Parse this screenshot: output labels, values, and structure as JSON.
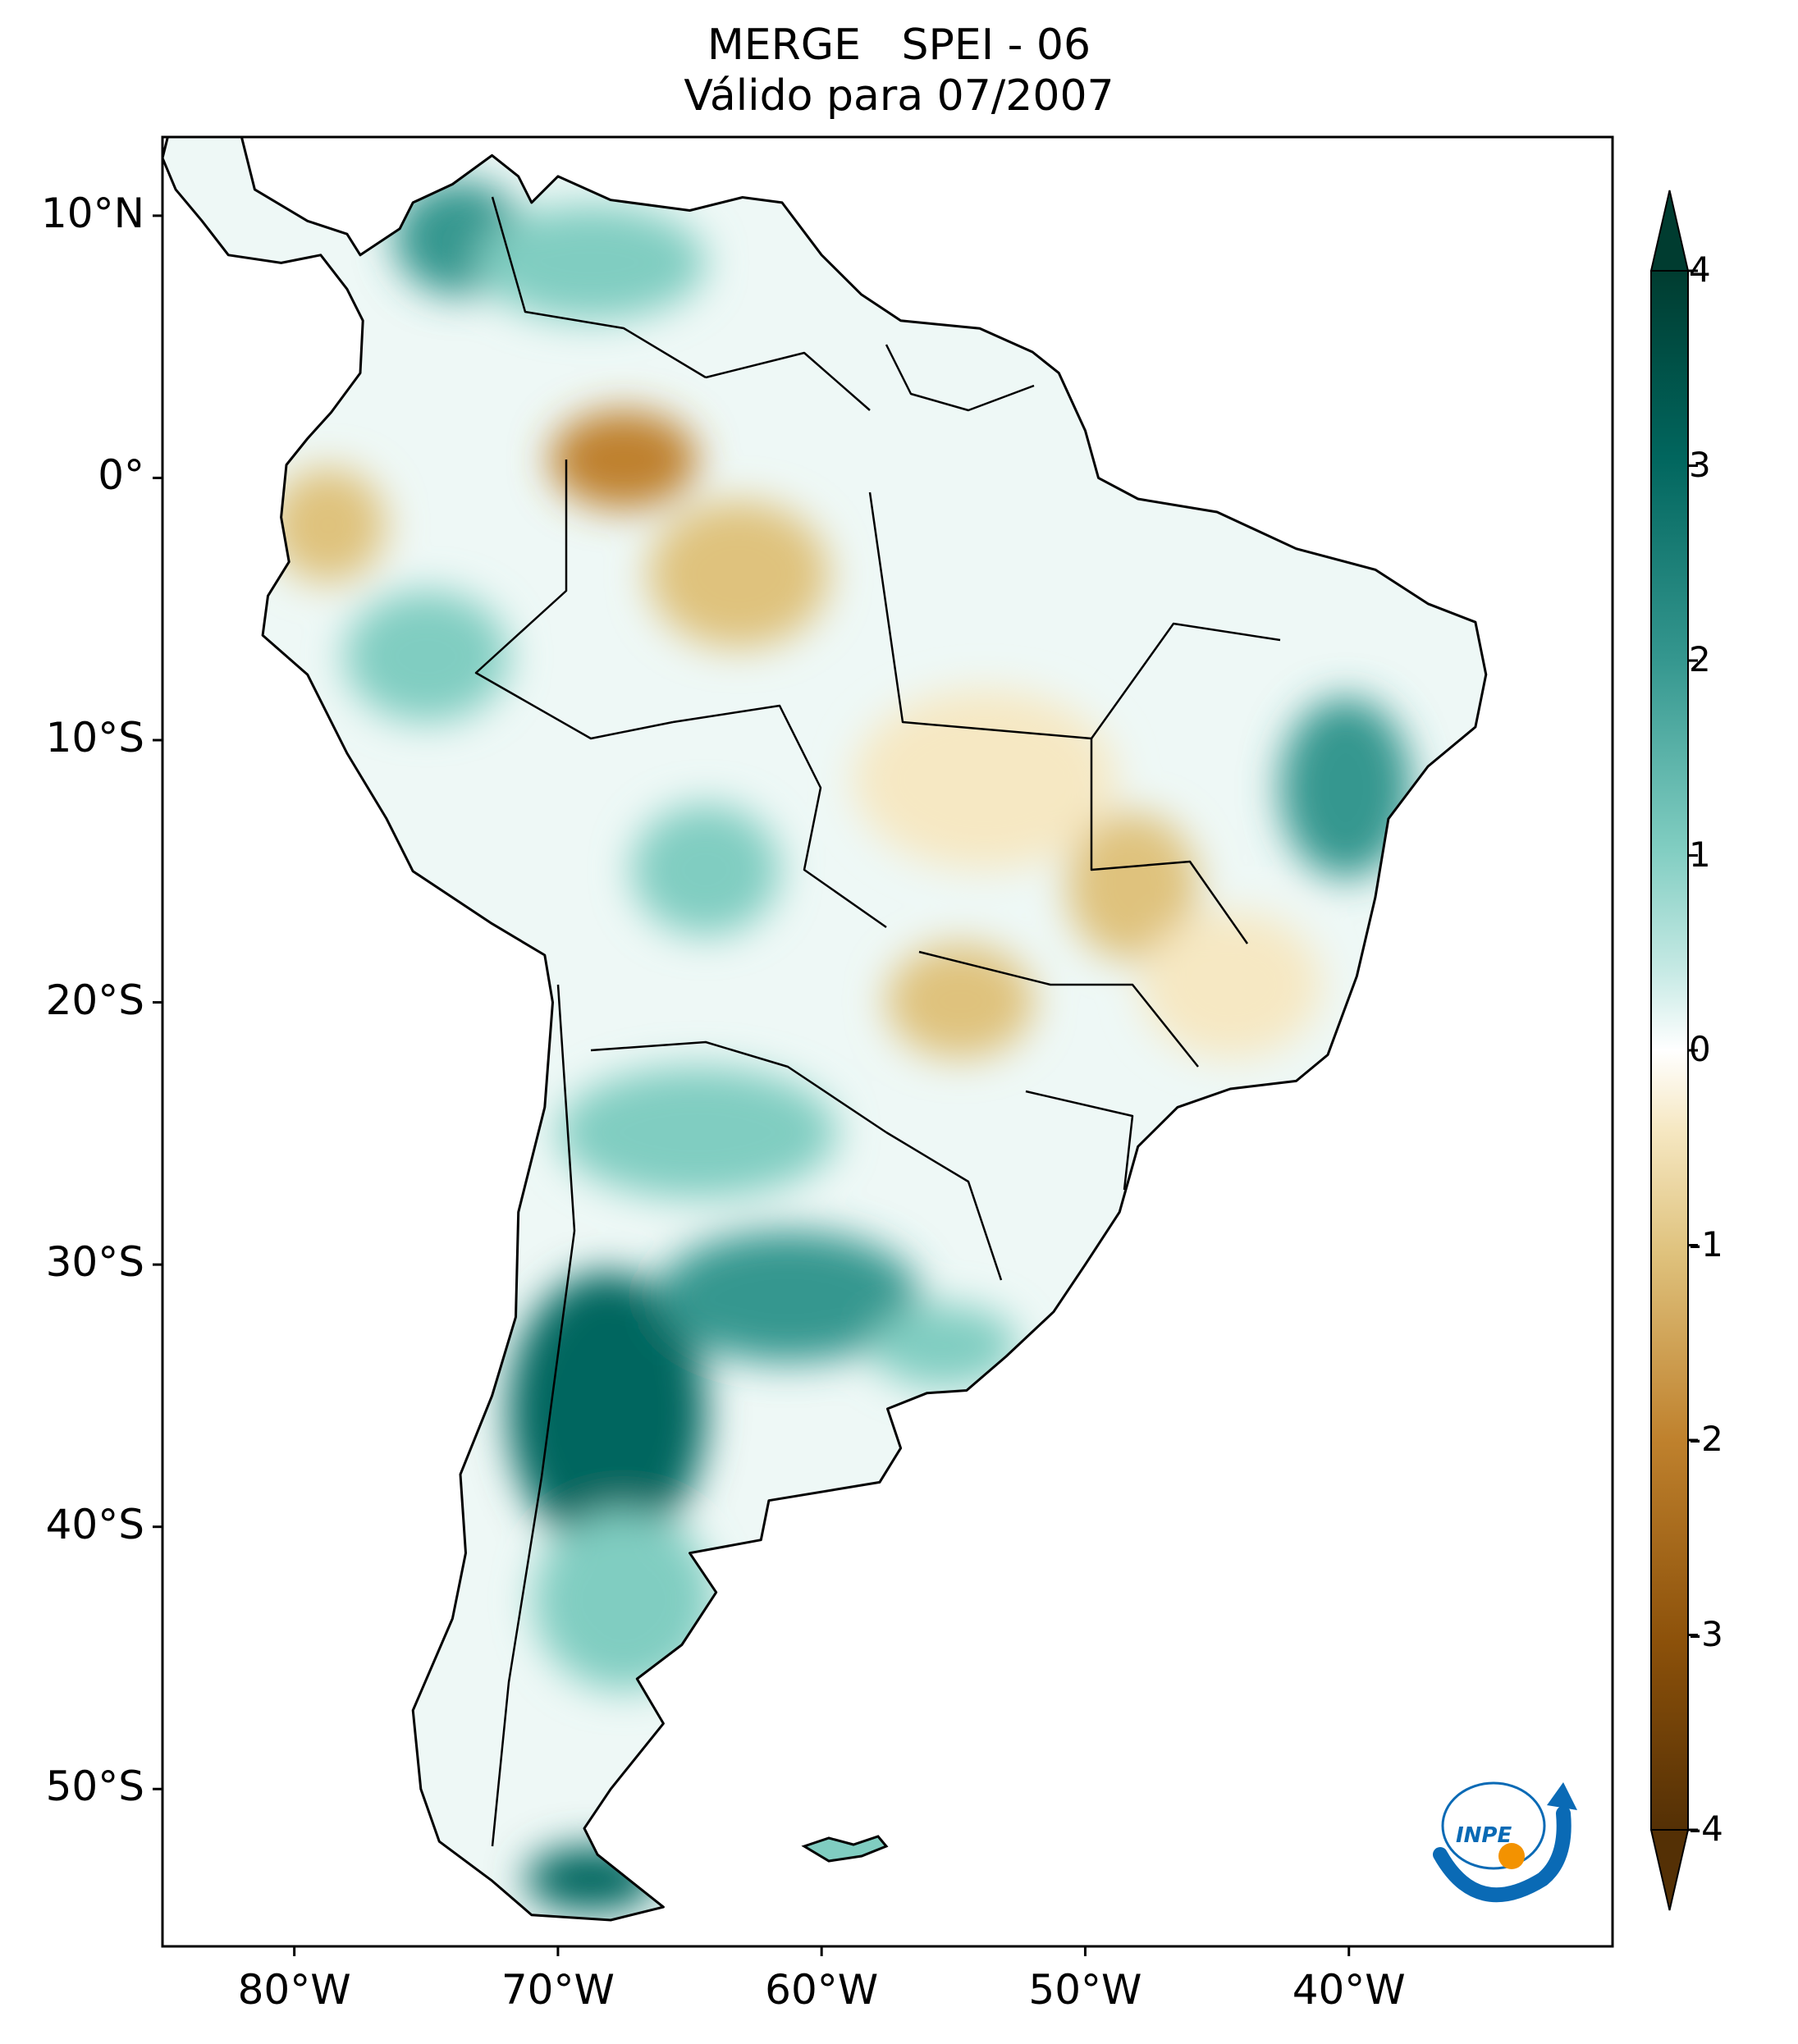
{
  "title": {
    "line1": "MERGE   SPEI - 06",
    "line2": "Válido para 07/2007"
  },
  "map": {
    "projection": "PlateCarree",
    "extent_lon": [
      -85,
      -30
    ],
    "extent_lat": [
      -56,
      13
    ],
    "lat_ticks": [
      {
        "value": 10,
        "label": "10°N"
      },
      {
        "value": 0,
        "label": "0°"
      },
      {
        "value": -10,
        "label": "10°S"
      },
      {
        "value": -20,
        "label": "20°S"
      },
      {
        "value": -30,
        "label": "30°S"
      },
      {
        "value": -40,
        "label": "40°S"
      },
      {
        "value": -50,
        "label": "50°S"
      }
    ],
    "lon_ticks": [
      {
        "value": -80,
        "label": "80°W"
      },
      {
        "value": -70,
        "label": "70°W"
      },
      {
        "value": -60,
        "label": "60°W"
      },
      {
        "value": -50,
        "label": "50°W"
      },
      {
        "value": -40,
        "label": "40°W"
      }
    ],
    "field": "SPEI-6 anomaly, wet (teal) in central/southern Argentina, Colombia coast, NE Brazil; dry (brown) in western Amazon and central Brazil"
  },
  "colorbar": {
    "colormap": "BrBG",
    "range": [
      -4,
      4
    ],
    "extend": "both",
    "ticks": [
      "4",
      "3",
      "2",
      "1",
      "0",
      "-1",
      "-2",
      "-3",
      "-4"
    ],
    "colors": [
      "#543005",
      "#8c510a",
      "#bf812d",
      "#dfc27d",
      "#f6e8c3",
      "#ffffff",
      "#c7eae5",
      "#80cdc1",
      "#35978f",
      "#01665e",
      "#003c30"
    ]
  },
  "logo": {
    "text": "INPE",
    "color_blue": "#0a6ab5",
    "color_orange": "#f39200"
  }
}
